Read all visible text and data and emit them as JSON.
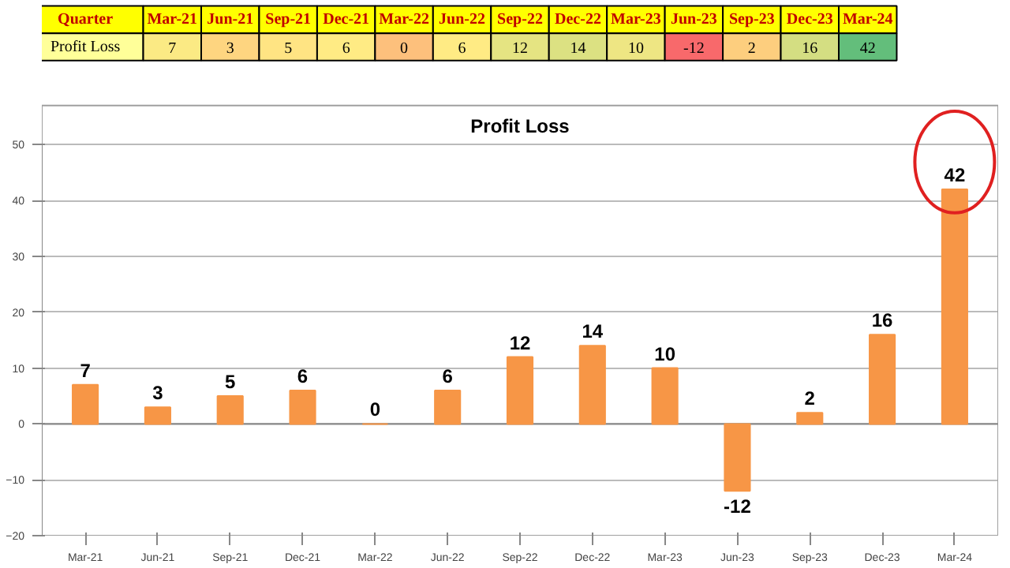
{
  "chart_data": {
    "type": "bar",
    "title": "Profit Loss",
    "annotations": [
      "Quarter",
      "7",
      "3",
      "5",
      "6",
      "0",
      "6",
      "12",
      "14",
      "10",
      "-12",
      "2",
      "16",
      "42"
    ],
    "categories": [
      "Mar-21",
      "Jun-21",
      "Sep-21",
      "Dec-21",
      "Mar-22",
      "Jun-22",
      "Sep-22",
      "Dec-22",
      "Mar-23",
      "Jun-23",
      "Sep-23",
      "Dec-23",
      "Mar-24"
    ],
    "series": [
      {
        "name": "Profit Loss",
        "color": "#f79646",
        "values": [
          7,
          3,
          5,
          6,
          0,
          6,
          12,
          14,
          10,
          -12,
          2,
          16,
          42
        ],
        "value_labels": [
          "7",
          "3",
          "5",
          "6",
          "0",
          "6",
          "12",
          "14",
          "10",
          "-12",
          "2",
          "16",
          "42"
        ]
      }
    ],
    "ylim": [
      -20,
      50
    ],
    "yticks": [
      -20,
      -10,
      0,
      10,
      20,
      30,
      40,
      50
    ],
    "grid": "y",
    "legend": false
  }
}
